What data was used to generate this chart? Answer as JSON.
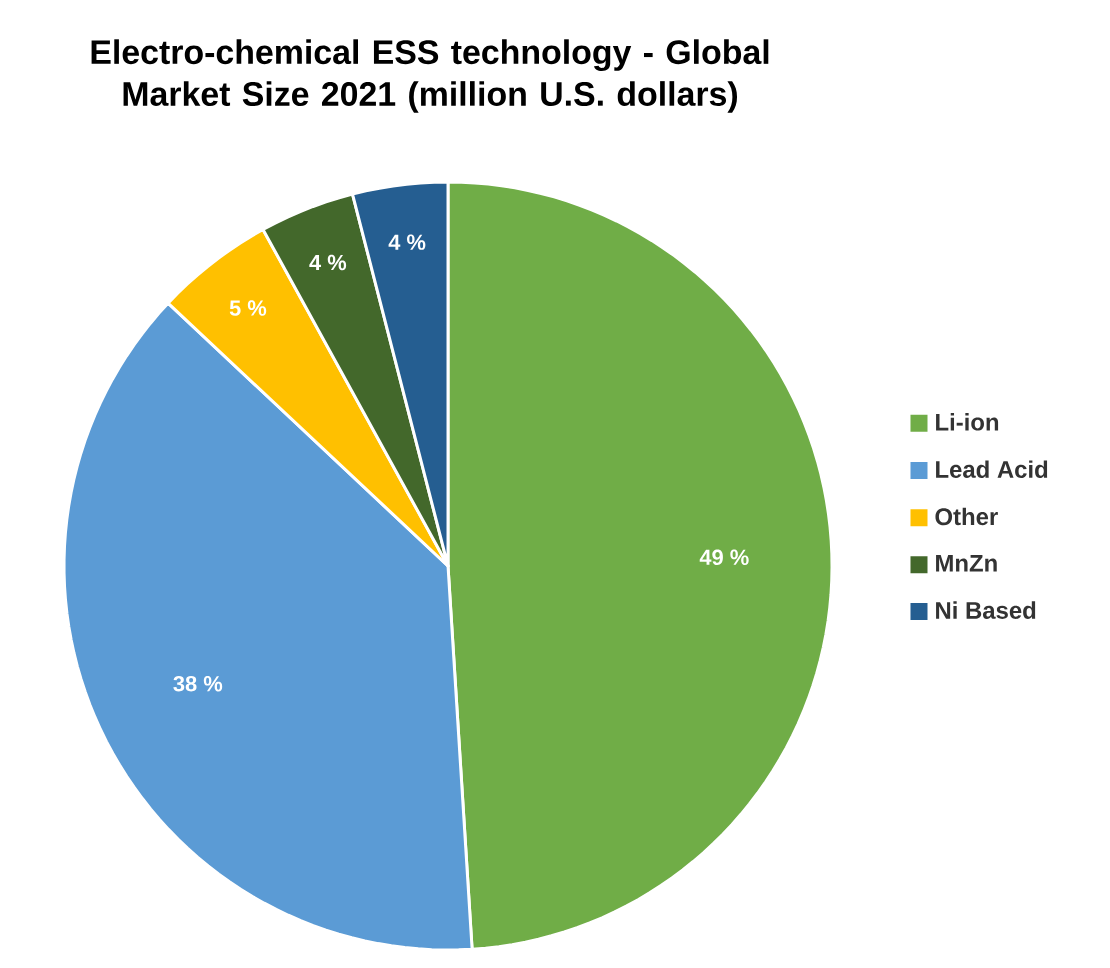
{
  "chart_data": {
    "type": "pie",
    "title": "Electro-chemical ESS technology - Global Market Size 2021 (million U.S. dollars)",
    "categories": [
      "Li-ion",
      "Lead Acid",
      "Other",
      "MnZn",
      "Ni Based"
    ],
    "values": [
      49,
      38,
      5,
      4,
      4
    ],
    "value_labels": [
      "49 %",
      "38 %",
      "5 %",
      "4 %",
      "4 %"
    ],
    "colors": [
      "#70ad47",
      "#5b9bd5",
      "#ffc000",
      "#43682b",
      "#255e91"
    ],
    "legend": "right"
  }
}
